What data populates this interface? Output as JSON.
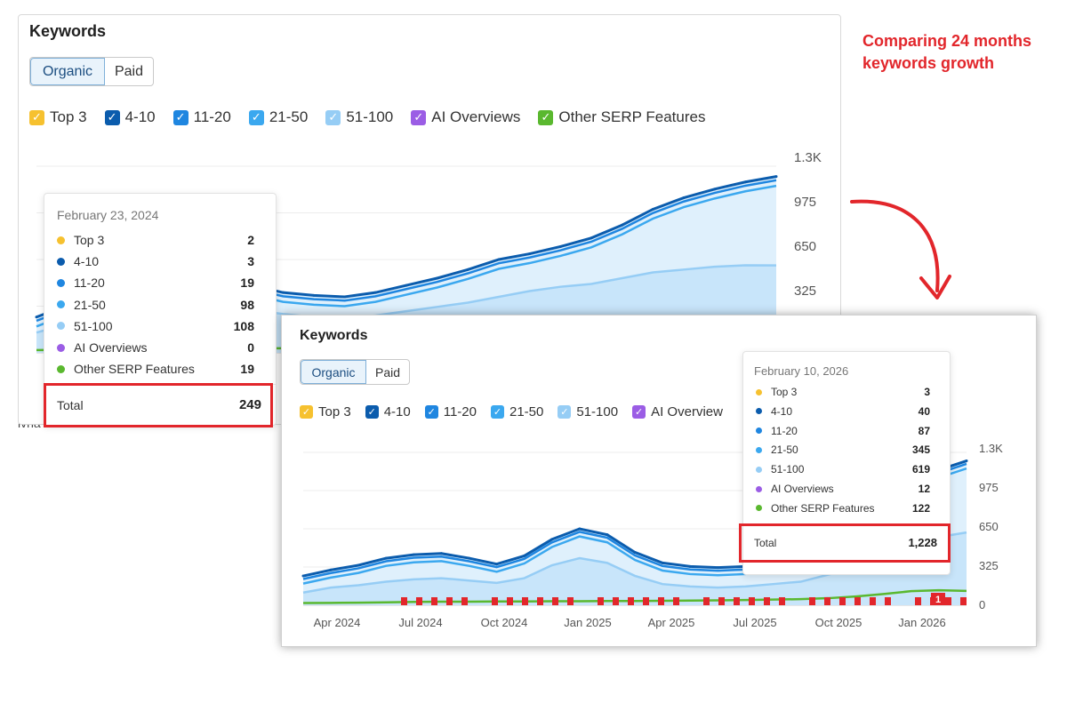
{
  "annotation": {
    "line1": "Comparing 24 months",
    "line2": "keywords growth"
  },
  "colors": {
    "top3": "#f6c12f",
    "pos4_10": "#0b5cad",
    "pos11_20": "#1f86e0",
    "pos21_50": "#3ba8ef",
    "pos51_100": "#96cdf5",
    "ai_overviews": "#9b5de5",
    "serp_features": "#5ab82f",
    "highlight": "#e2262b"
  },
  "legend_items": [
    {
      "label": "Top 3",
      "color": "#f6c12f"
    },
    {
      "label": "4-10",
      "color": "#0b5cad"
    },
    {
      "label": "11-20",
      "color": "#1f86e0"
    },
    {
      "label": "21-50",
      "color": "#3ba8ef"
    },
    {
      "label": "51-100",
      "color": "#96cdf5"
    },
    {
      "label": "AI Overviews",
      "color": "#9b5de5"
    },
    {
      "label": "Other SERP Features",
      "color": "#5ab82f"
    }
  ],
  "panel1": {
    "title": "Keywords",
    "tabs": [
      "Organic",
      "Paid"
    ],
    "yticks": [
      "1.3K",
      "975",
      "650",
      "325"
    ],
    "partial_text": "lvha",
    "tooltip": {
      "date": "February 23, 2024",
      "rows": [
        {
          "label": "Top 3",
          "value": "2",
          "color": "#f6c12f"
        },
        {
          "label": "4-10",
          "value": "3",
          "color": "#0b5cad"
        },
        {
          "label": "11-20",
          "value": "19",
          "color": "#1f86e0"
        },
        {
          "label": "21-50",
          "value": "98",
          "color": "#3ba8ef"
        },
        {
          "label": "51-100",
          "value": "108",
          "color": "#96cdf5"
        },
        {
          "label": "AI Overviews",
          "value": "0",
          "color": "#9b5de5"
        },
        {
          "label": "Other SERP Features",
          "value": "19",
          "color": "#5ab82f"
        }
      ],
      "total_label": "Total",
      "total_value": "249"
    }
  },
  "panel2": {
    "title": "Keywords",
    "tabs": [
      "Organic",
      "Paid"
    ],
    "legend_visible": [
      "Top 3",
      "4-10",
      "11-20",
      "21-50",
      "51-100",
      "AI Overview"
    ],
    "yticks": [
      "1.3K",
      "975",
      "650",
      "325",
      "0"
    ],
    "xticks": [
      "Apr 2024",
      "Jul 2024",
      "Oct 2024",
      "Jan 2025",
      "Apr 2025",
      "Jul 2025",
      "Oct 2025",
      "Jan 2026"
    ],
    "marker_badge": "1",
    "tooltip": {
      "date": "February 10, 2026",
      "rows": [
        {
          "label": "Top 3",
          "value": "3",
          "color": "#f6c12f"
        },
        {
          "label": "4-10",
          "value": "40",
          "color": "#0b5cad"
        },
        {
          "label": "11-20",
          "value": "87",
          "color": "#1f86e0"
        },
        {
          "label": "21-50",
          "value": "345",
          "color": "#3ba8ef"
        },
        {
          "label": "51-100",
          "value": "619",
          "color": "#96cdf5"
        },
        {
          "label": "AI Overviews",
          "value": "12",
          "color": "#9b5de5"
        },
        {
          "label": "Other SERP Features",
          "value": "122",
          "color": "#5ab82f"
        }
      ],
      "total_label": "Total",
      "total_value": "1,228"
    }
  },
  "chart_data": [
    {
      "type": "area",
      "title": "Keywords",
      "ylim": [
        0,
        1300
      ],
      "x": [
        "2024-02",
        "2024-03",
        "2024-04",
        "2024-05",
        "2024-06",
        "2024-07",
        "2024-08",
        "2024-09",
        "2024-10",
        "2024-11",
        "2024-12",
        "2025-01",
        "2025-02",
        "2025-03",
        "2025-04",
        "2025-05",
        "2025-06",
        "2025-07",
        "2025-08",
        "2025-09",
        "2025-10",
        "2025-11",
        "2025-12",
        "2026-01",
        "2026-02"
      ],
      "series": [
        {
          "name": "51-100 (cumulative total)",
          "values": [
            249,
            330,
            430,
            550,
            620,
            640,
            600,
            470,
            420,
            400,
            390,
            420,
            470,
            520,
            580,
            650,
            690,
            740,
            800,
            890,
            1000,
            1080,
            1140,
            1190,
            1228
          ]
        },
        {
          "name": "21-50 (cumulative)",
          "values": [
            141,
            200,
            250,
            330,
            380,
            400,
            370,
            300,
            270,
            250,
            240,
            260,
            290,
            320,
            350,
            390,
            430,
            460,
            480,
            520,
            560,
            580,
            600,
            610,
            609
          ]
        },
        {
          "name": "Other SERP Features",
          "values": [
            19,
            20,
            22,
            25,
            28,
            30,
            30,
            32,
            32,
            34,
            34,
            36,
            36,
            38,
            40,
            42,
            44,
            48,
            52,
            60,
            75,
            95,
            120,
            128,
            122
          ]
        }
      ]
    },
    {
      "type": "area",
      "title": "Keywords",
      "ylim": [
        0,
        1300
      ],
      "x": [
        "2024-02",
        "2024-03",
        "2024-04",
        "2024-05",
        "2024-06",
        "2024-07",
        "2024-08",
        "2024-09",
        "2024-10",
        "2024-11",
        "2024-12",
        "2025-01",
        "2025-02",
        "2025-03",
        "2025-04",
        "2025-05",
        "2025-06",
        "2025-07",
        "2025-08",
        "2025-09",
        "2025-10",
        "2025-11",
        "2025-12",
        "2026-01",
        "2026-02"
      ],
      "series": [
        {
          "name": "Total",
          "values": [
            249,
            300,
            340,
            400,
            430,
            440,
            400,
            350,
            420,
            560,
            650,
            600,
            450,
            360,
            330,
            320,
            330,
            360,
            400,
            480,
            560,
            700,
            900,
            1150,
            1228
          ]
        },
        {
          "name": "51-100",
          "values": [
            108,
            150,
            170,
            200,
            220,
            230,
            210,
            190,
            230,
            340,
            400,
            360,
            250,
            180,
            160,
            150,
            160,
            180,
            200,
            260,
            320,
            400,
            500,
            580,
            619
          ]
        },
        {
          "name": "Other SERP Features",
          "values": [
            19,
            20,
            22,
            25,
            28,
            30,
            30,
            32,
            32,
            34,
            34,
            36,
            36,
            38,
            40,
            42,
            44,
            48,
            52,
            60,
            75,
            95,
            120,
            128,
            122
          ]
        }
      ]
    }
  ]
}
